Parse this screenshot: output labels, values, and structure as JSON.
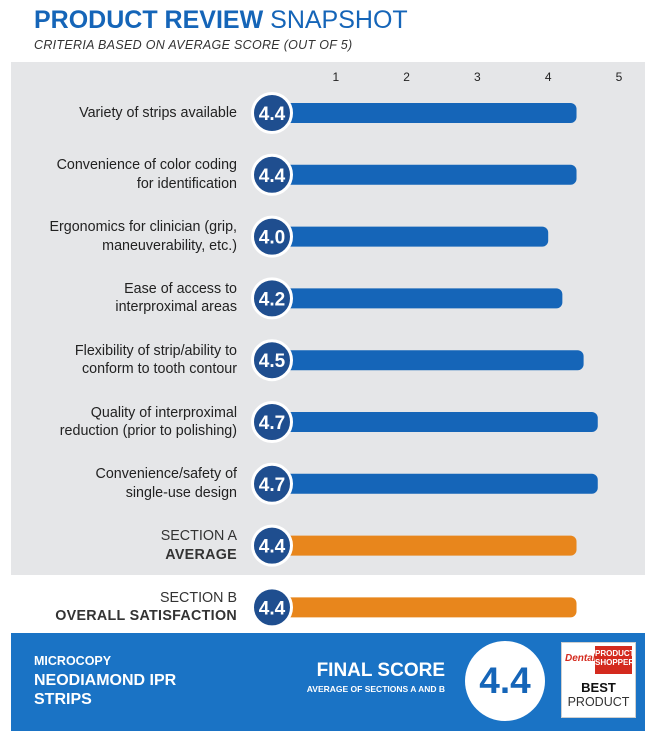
{
  "header": {
    "title_bold": "PRODUCT REVIEW",
    "title_light": "SNAPSHOT",
    "subtitle": "CRITERIA BASED ON AVERAGE SCORE (OUT OF 5)"
  },
  "colors": {
    "blue_bar": "#1565b8",
    "orange_bar": "#e8861c",
    "badge_fill": "#1f4e8f",
    "footer": "#1a73c5"
  },
  "chart_data": {
    "type": "bar",
    "orientation": "horizontal",
    "xlim": [
      0,
      5
    ],
    "ticks": [
      1,
      2,
      3,
      4,
      5
    ],
    "rows": [
      {
        "lines": [
          "Variety of strips available"
        ],
        "value": 4.4,
        "label": "4.4",
        "kind": "criterion"
      },
      {
        "lines": [
          "Convenience of color coding",
          "for identification"
        ],
        "value": 4.4,
        "label": "4.4",
        "kind": "criterion"
      },
      {
        "lines": [
          "Ergonomics for clinician (grip,",
          "maneuverability, etc.)"
        ],
        "value": 4.0,
        "label": "4.0",
        "kind": "criterion"
      },
      {
        "lines": [
          "Ease of access to",
          "interproximal areas"
        ],
        "value": 4.2,
        "label": "4.2",
        "kind": "criterion"
      },
      {
        "lines": [
          "Flexibility of strip/ability to",
          "conform to tooth contour"
        ],
        "value": 4.5,
        "label": "4.5",
        "kind": "criterion"
      },
      {
        "lines": [
          "Quality of interproximal",
          "reduction (prior to polishing)"
        ],
        "value": 4.7,
        "label": "4.7",
        "kind": "criterion"
      },
      {
        "lines": [
          "Convenience/safety of",
          "single-use design"
        ],
        "value": 4.7,
        "label": "4.7",
        "kind": "criterion"
      },
      {
        "lines": [
          "SECTION A",
          "AVERAGE"
        ],
        "value": 4.4,
        "label": "4.4",
        "kind": "section"
      },
      {
        "lines": [
          "SECTION B",
          "OVERALL SATISFACTION"
        ],
        "value": 4.4,
        "label": "4.4",
        "kind": "section"
      }
    ]
  },
  "footer": {
    "product_line": "MICROCOPY",
    "product_name": "NEODIAMOND IPR STRIPS",
    "final_label": "FINAL SCORE",
    "final_sub": "AVERAGE OF SECTIONS A AND B",
    "final_value": "4.4",
    "badge": {
      "brand": "Dental",
      "brand_red": "PRODUCT SHOPPER",
      "best": "BEST",
      "product": "PRODUCT"
    }
  }
}
